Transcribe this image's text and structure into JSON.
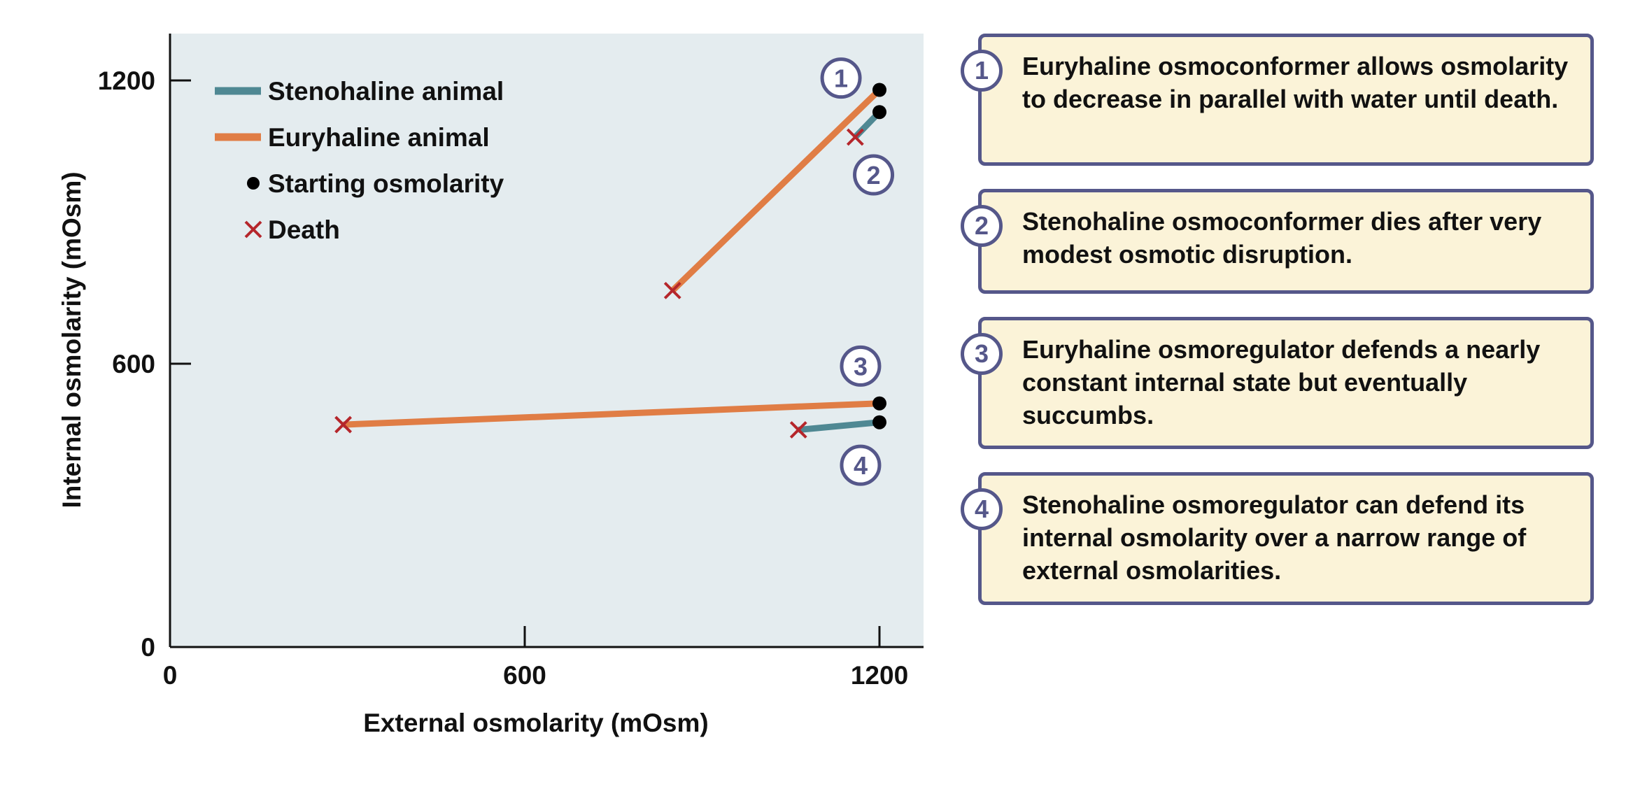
{
  "chart_data": {
    "type": "line",
    "xlabel": "External osmolarity (mOsm)",
    "ylabel": "Internal osmolarity (mOsm)",
    "xlim": [
      0,
      1320
    ],
    "ylim": [
      0,
      1300
    ],
    "xticks": [
      "0",
      "600",
      "1200"
    ],
    "yticks": [
      "0",
      "600",
      "1200"
    ],
    "grid": false,
    "legend_placement": "top-left",
    "legend": [
      {
        "label": "Stenohaline animal",
        "kind": "line",
        "color": "#4f8893"
      },
      {
        "label": "Euryhaline animal",
        "kind": "line",
        "color": "#e07d45"
      },
      {
        "label": "Starting osmolarity",
        "kind": "dot",
        "color": "#000000"
      },
      {
        "label": "Death",
        "kind": "cross",
        "color": "#b5262b"
      }
    ],
    "series": [
      {
        "id": "1",
        "group": "Euryhaline animal",
        "color": "#e07d45",
        "start": [
          1200,
          1180
        ],
        "death": [
          850,
          755
        ],
        "label_pos": [
          1135,
          1205
        ]
      },
      {
        "id": "2",
        "group": "Stenohaline animal",
        "color": "#4f8893",
        "start": [
          1200,
          1133
        ],
        "death": [
          1159,
          1080
        ],
        "label_pos": [
          1190,
          1000
        ]
      },
      {
        "id": "3",
        "group": "Euryhaline animal",
        "color": "#e07d45",
        "start": [
          1200,
          516
        ],
        "death": [
          293,
          471
        ],
        "label_pos": [
          1168,
          595
        ]
      },
      {
        "id": "4",
        "group": "Stenohaline animal",
        "color": "#4f8893",
        "start": [
          1200,
          476
        ],
        "death": [
          1063,
          460
        ],
        "label_pos": [
          1168,
          385
        ]
      }
    ],
    "colors": {
      "plot_background": "#e4ecef",
      "badge": "#55578a",
      "box_background": "#fbf3d8"
    }
  },
  "notes": [
    {
      "num": "1",
      "text": "Euryhaline osmoconformer allows osmolarity to decrease in parallel with water until death."
    },
    {
      "num": "2",
      "text": "Stenohaline osmoconformer dies after very modest osmotic disruption."
    },
    {
      "num": "3",
      "text": "Euryhaline osmoregulator defends a nearly constant internal state but eventually succumbs."
    },
    {
      "num": "4",
      "text": "Stenohaline osmoregulator can defend its internal osmolarity over a narrow range of external osmolarities."
    }
  ]
}
